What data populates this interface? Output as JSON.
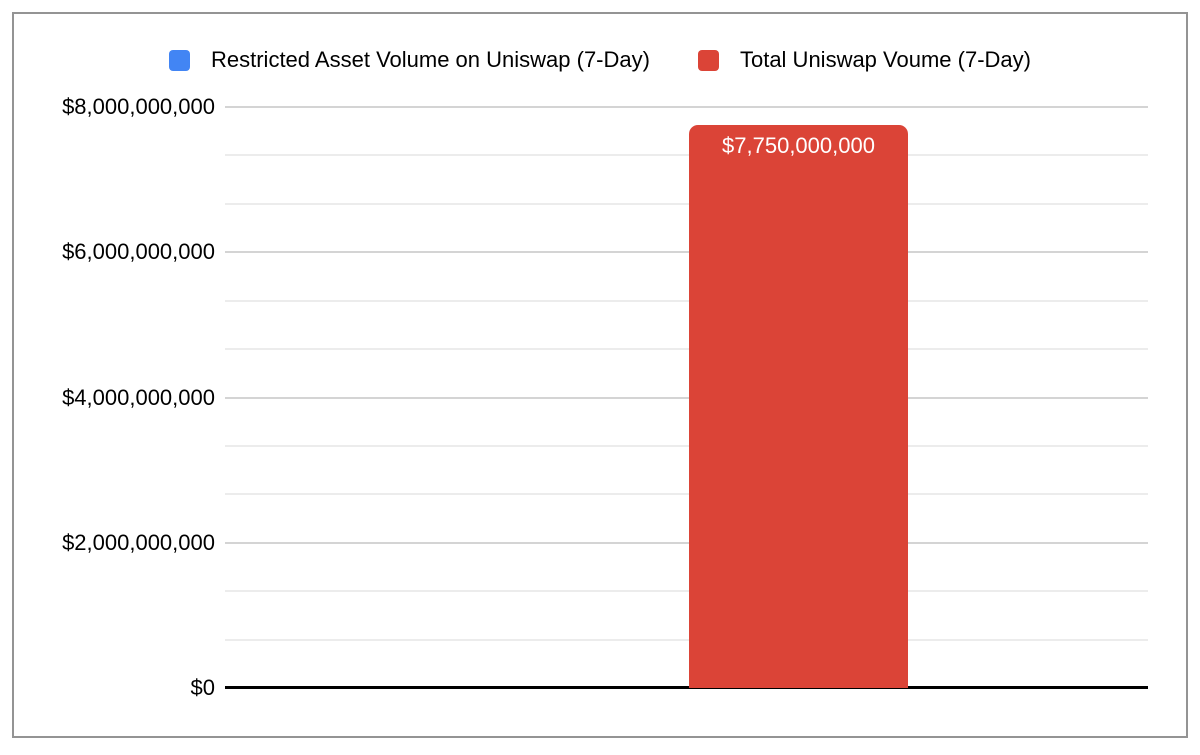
{
  "chart_data": {
    "type": "bar",
    "title": "",
    "categories": [
      ""
    ],
    "series": [
      {
        "name": "Restricted Asset Volume on Uniswap (7-Day)",
        "color": "#4285f4",
        "values": [
          0
        ]
      },
      {
        "name": "Total Uniswap Voume (7-Day)",
        "color": "#db4437",
        "values": [
          7750000000
        ],
        "data_label": "$7,750,000,000"
      }
    ],
    "ylim": [
      0,
      8000000000
    ],
    "ytick_values": [
      0,
      2000000000,
      4000000000,
      6000000000,
      8000000000
    ],
    "ytick_labels": [
      "$0",
      "$2,000,000,000",
      "$4,000,000,000",
      "$6,000,000,000",
      "$8,000,000,000"
    ],
    "minor_gridlines_per_major": 3,
    "grid": true,
    "legend_position": "top",
    "ylabel": "",
    "xlabel": ""
  }
}
